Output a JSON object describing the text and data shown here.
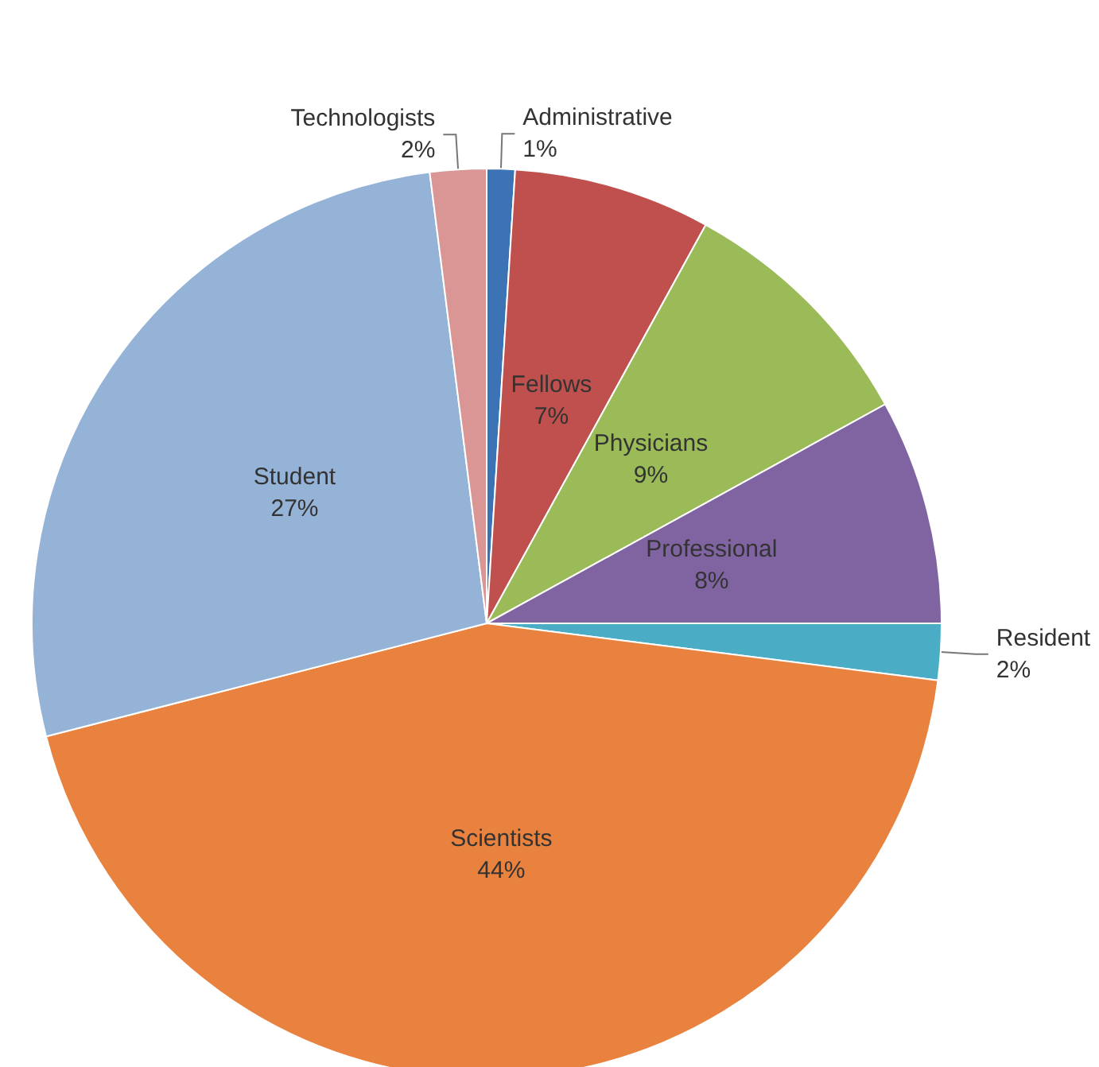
{
  "chart_data": {
    "type": "pie",
    "categories": [
      "Administrative",
      "Fellows",
      "Physicians",
      "Professional",
      "Resident",
      "Scientists",
      "Student",
      "Technologists"
    ],
    "values": [
      1,
      7,
      9,
      8,
      2,
      44,
      27,
      2
    ],
    "colors": [
      "#3c73b5",
      "#c0504d",
      "#9bbb59",
      "#8064a2",
      "#4bacc6",
      "#e8823e",
      "#95b3d7",
      "#d99694"
    ],
    "value_labels": [
      "1%",
      "7%",
      "9%",
      "8%",
      "2%",
      "44%",
      "27%",
      "2%"
    ],
    "legend": false
  }
}
